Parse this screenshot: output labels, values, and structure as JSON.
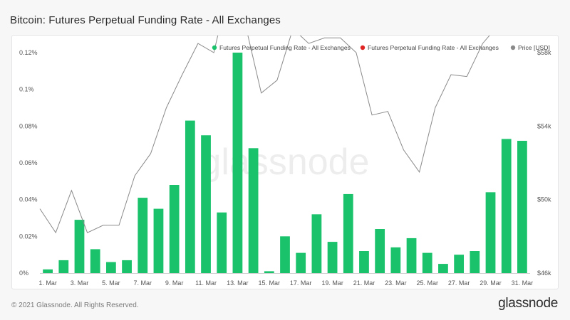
{
  "title": "Bitcoin: Futures Perpetual Funding Rate - All Exchanges",
  "watermark": "glassnode",
  "footer": {
    "copyright": "© 2021 Glassnode. All Rights Reserved.",
    "logo": "glassnode"
  },
  "colors": {
    "positive": "#19c26b",
    "negative": "#e02424",
    "price": "#8a8a8a"
  },
  "chart_data": {
    "type": "bar",
    "title": "Bitcoin: Futures Perpetual Funding Rate - All Exchanges",
    "legend_position": "top-right",
    "legend": [
      {
        "label": "Futures Perpetual Funding Rate - All Exchanges",
        "color": "#19c26b"
      },
      {
        "label": "Futures Perpetual Funding Rate - All Exchanges",
        "color": "#e02424"
      },
      {
        "label": "Price [USD]",
        "color": "#8a8a8a"
      }
    ],
    "x_ticks": [
      "1. Mar",
      "3. Mar",
      "5. Mar",
      "7. Mar",
      "9. Mar",
      "11. Mar",
      "13. Mar",
      "15. Mar",
      "17. Mar",
      "19. Mar",
      "21. Mar",
      "23. Mar",
      "25. Mar",
      "27. Mar",
      "29. Mar",
      "31. Mar"
    ],
    "y_left": {
      "ticks": [
        "0%",
        "0.02%",
        "0.04%",
        "0.06%",
        "0.08%",
        "0.1%",
        "0.12%"
      ],
      "min": 0,
      "max": 0.12,
      "unit": "%"
    },
    "y_right": {
      "ticks": [
        "$46k",
        "$50k",
        "$54k",
        "$58k"
      ],
      "tick_values": [
        46000,
        50000,
        54000,
        58000
      ],
      "min": 46000,
      "max": 58000
    },
    "series": [
      {
        "name": "Futures Perpetual Funding Rate - All Exchanges",
        "kind": "bar",
        "axis": "left",
        "values": [
          0.002,
          0.007,
          0.029,
          0.013,
          0.006,
          0.007,
          0.041,
          0.035,
          0.048,
          0.083,
          0.075,
          0.033,
          0.12,
          0.068,
          0.001,
          0.02,
          0.011,
          0.032,
          0.017,
          0.043,
          0.012,
          0.024,
          0.014,
          0.019,
          0.011,
          0.005,
          0.01,
          0.012,
          0.044,
          0.073,
          0.072
        ]
      },
      {
        "name": "Price [USD]",
        "kind": "line",
        "axis": "right",
        "values": [
          49500,
          48200,
          50500,
          48200,
          48600,
          48600,
          51300,
          52500,
          55000,
          56800,
          58500,
          58000,
          61700,
          59500,
          55800,
          56500,
          59300,
          58500,
          58800,
          58800,
          58000,
          54600,
          54800,
          52700,
          51500,
          55000,
          56800,
          56700,
          58500,
          59500,
          59500,
          59300
        ]
      }
    ]
  }
}
